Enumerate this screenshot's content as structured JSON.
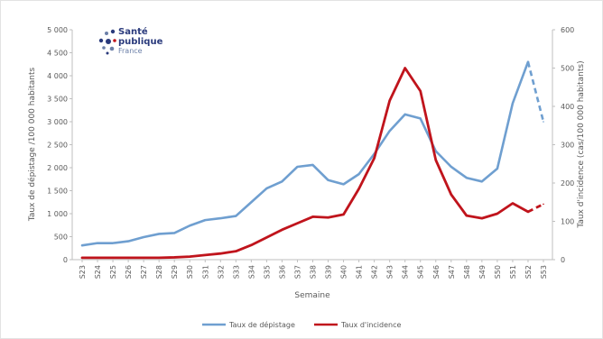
{
  "logo": {
    "line1": "Santé",
    "line2": "publique",
    "line3": "France"
  },
  "chart_data": {
    "type": "line",
    "xlabel": "Semaine",
    "ylabel_left": "Taux de dépistage /100 000 habitants",
    "ylabel_right": "Taux d'incidence (cas/100 000 habitants)",
    "ylim_left": [
      0,
      5000
    ],
    "ylim_right": [
      0,
      600
    ],
    "yticks_left": [
      "0",
      "500",
      "1 000",
      "1 500",
      "2 000",
      "2 500",
      "3 000",
      "3 500",
      "4 000",
      "4 500",
      "5 000"
    ],
    "yticks_right": [
      "0",
      "100",
      "200",
      "300",
      "400",
      "500",
      "600"
    ],
    "categories": [
      "S23",
      "S24",
      "S25",
      "S26",
      "S27",
      "S28",
      "S29",
      "S30",
      "S31",
      "S32",
      "S33",
      "S34",
      "S35",
      "S36",
      "S37",
      "S38",
      "S39",
      "S40",
      "S41",
      "S42",
      "S43",
      "S44",
      "S45",
      "S46",
      "S47",
      "S48",
      "S49",
      "S50",
      "S51",
      "S52",
      "S53"
    ],
    "grid": false,
    "legend_position": "bottom",
    "series": [
      {
        "name": "Taux de dépistage",
        "axis": "left",
        "color": "#6f9fd0",
        "values": [
          310,
          360,
          360,
          400,
          490,
          560,
          580,
          740,
          860,
          900,
          950,
          1250,
          1550,
          1700,
          2020,
          2060,
          1730,
          1640,
          1860,
          2300,
          2800,
          3160,
          3070,
          2360,
          2020,
          1780,
          1700,
          1980,
          3400,
          4300,
          3000
        ],
        "dashed_from_index": 29
      },
      {
        "name": "Taux d'incidence",
        "axis": "right",
        "color": "#c0141c",
        "values": [
          5,
          5,
          5,
          5,
          5,
          5,
          6,
          8,
          12,
          16,
          22,
          38,
          58,
          78,
          95,
          112,
          110,
          118,
          185,
          265,
          415,
          500,
          440,
          260,
          170,
          115,
          108,
          120,
          147,
          125,
          145
        ],
        "dashed_from_index": 29
      }
    ]
  }
}
